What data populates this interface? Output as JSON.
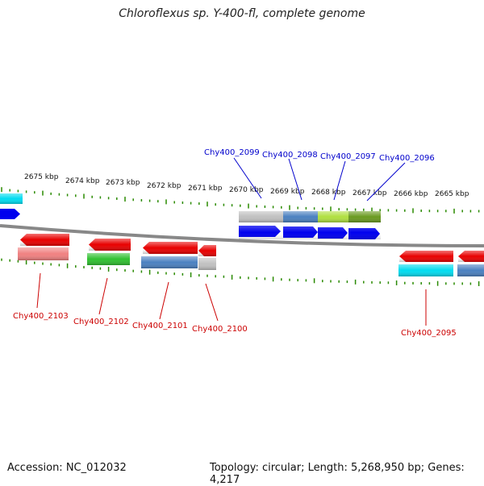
{
  "title": "Chloroflexus sp. Y-400-fl, complete genome",
  "footer": {
    "accession": "Accession: NC_012032",
    "summary": "Topology: circular; Length: 5,268,950 bp; Genes: 4,217"
  },
  "axis_ticks": [
    "2675 kbp",
    "2674 kbp",
    "2673 kbp",
    "2672 kbp",
    "2671 kbp",
    "2670 kbp",
    "2669 kbp",
    "2668 kbp",
    "2667 kbp",
    "2666 kbp",
    "2665 kbp"
  ],
  "genes_top": [
    "Chy400_2099",
    "Chy400_2098",
    "Chy400_2097",
    "Chy400_2096"
  ],
  "genes_bottom": [
    "Chy400_2103",
    "Chy400_2102",
    "Chy400_2101",
    "Chy400_2100",
    "Chy400_2095"
  ],
  "colors": {
    "tick": "#2a8a00",
    "backbone": "#888888",
    "forward_label": "#0000cc",
    "reverse_label": "#cc0000",
    "cds": "#e80000",
    "gene": "#0000ee",
    "cyan": "#00dcf0",
    "steelblue": "#4a80c0",
    "grey": "#c0c0c0",
    "green": "#30c030",
    "olive": "#6a9a20",
    "lime": "#b0e040",
    "pink": "#f08080"
  }
}
